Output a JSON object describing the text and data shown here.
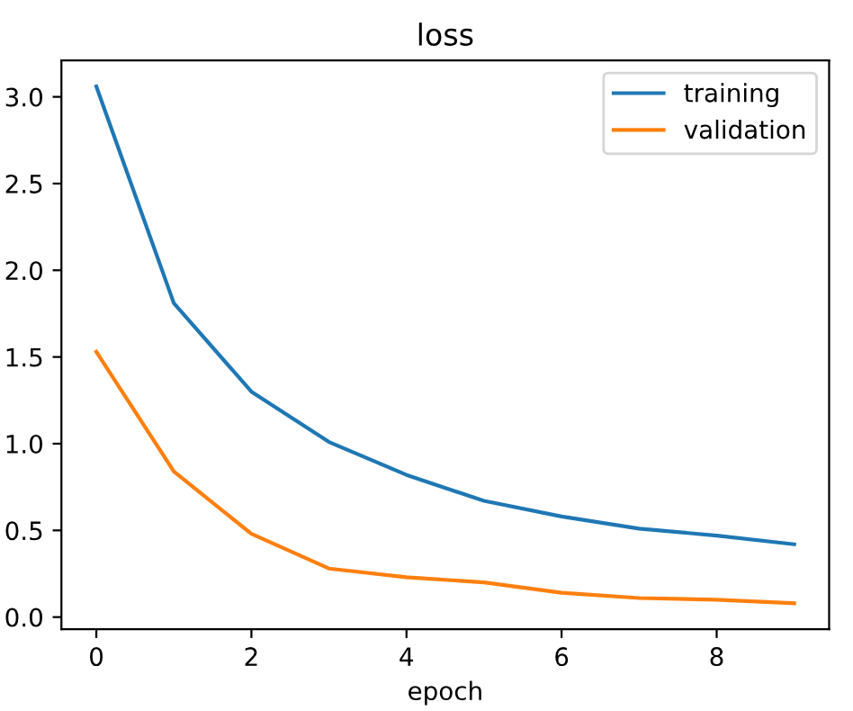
{
  "chart_data": {
    "type": "line",
    "title": "loss",
    "xlabel": "epoch",
    "x": [
      0,
      1,
      2,
      3,
      4,
      5,
      6,
      7,
      8,
      9
    ],
    "series": [
      {
        "name": "training",
        "color": "#1f77b4",
        "values": [
          3.06,
          1.81,
          1.3,
          1.01,
          0.82,
          0.67,
          0.58,
          0.51,
          0.47,
          0.42
        ]
      },
      {
        "name": "validation",
        "color": "#ff7f0e",
        "values": [
          1.53,
          0.84,
          0.48,
          0.28,
          0.23,
          0.2,
          0.14,
          0.11,
          0.1,
          0.08
        ]
      }
    ],
    "xlim": [
      -0.45,
      9.45
    ],
    "ylim": [
      -0.07,
      3.21
    ],
    "xticks": [
      0,
      2,
      4,
      6,
      8
    ],
    "yticks": [
      {
        "value": 0,
        "label": "0.0"
      },
      0.5,
      {
        "value": 1,
        "label": "1.0"
      },
      1.5,
      {
        "value": 2,
        "label": "2.0"
      },
      2.5,
      {
        "value": 3,
        "label": "3.0"
      }
    ],
    "grid": false,
    "legend": "top right"
  }
}
